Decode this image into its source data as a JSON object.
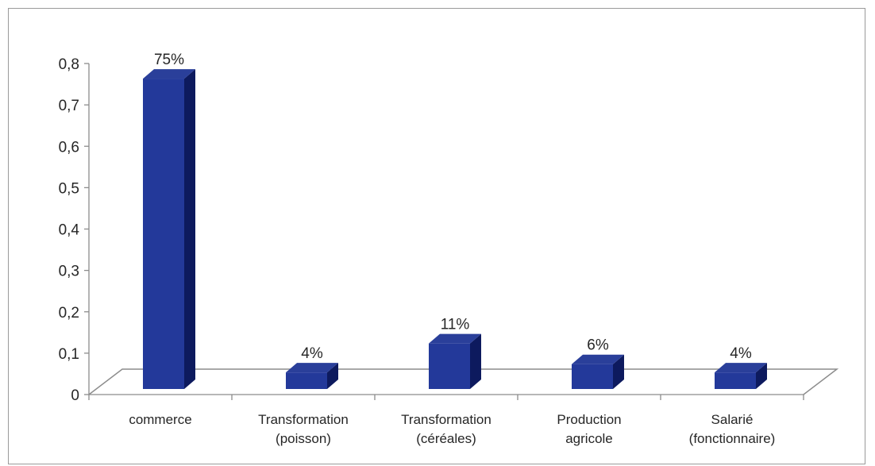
{
  "chart_data": {
    "type": "bar",
    "categories": [
      [
        "commerce"
      ],
      [
        "Transformation",
        "(poisson)"
      ],
      [
        "Transformation",
        "(céréales)"
      ],
      [
        "Production",
        "agricole"
      ],
      [
        "Salarié",
        "(fonctionnaire)"
      ]
    ],
    "values": [
      0.75,
      0.04,
      0.11,
      0.06,
      0.04
    ],
    "data_labels": [
      "75%",
      "4%",
      "11%",
      "6%",
      "4%"
    ],
    "yticks": [
      "0",
      "0,1",
      "0,2",
      "0,3",
      "0,4",
      "0,5",
      "0,6",
      "0,7",
      "0,8"
    ],
    "ylim": [
      0,
      0.8
    ],
    "title": "",
    "xlabel": "",
    "ylabel": "",
    "grid": false,
    "legend": "none",
    "style": "3d-column",
    "colors": {
      "front": "#23399a",
      "side": "#0d1a5e",
      "top": "#2a3f9a",
      "floor_line": "#8c8c8c",
      "axis": "#8c8c8c",
      "frame": "#9a9a9a"
    }
  }
}
